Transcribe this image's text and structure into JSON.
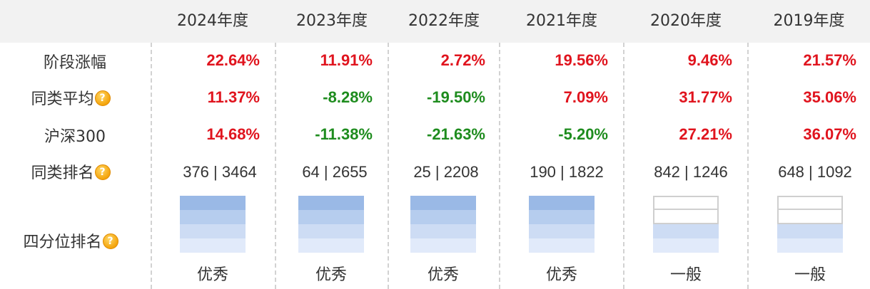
{
  "colors": {
    "positive": "#e0141e",
    "negative": "#1e8c1e",
    "quartile_filled": [
      "#9ab9e6",
      "#b6cdee",
      "#cddcf4",
      "#e1eafa"
    ],
    "quartile_empty_border": "#cfcfcf"
  },
  "years": [
    "2024年度",
    "2023年度",
    "2022年度",
    "2021年度",
    "2020年度",
    "2019年度"
  ],
  "rows": {
    "stage_gain": {
      "label": "阶段涨幅",
      "values": [
        "22.64%",
        "11.91%",
        "2.72%",
        "19.56%",
        "9.46%",
        "21.57%"
      ]
    },
    "peer_avg": {
      "label": "同类平均",
      "help_icon": "help-icon",
      "values": [
        "11.37%",
        "-8.28%",
        "-19.50%",
        "7.09%",
        "31.77%",
        "35.06%"
      ]
    },
    "csi300": {
      "label": "沪深300",
      "values": [
        "14.68%",
        "-11.38%",
        "-21.63%",
        "-5.20%",
        "27.21%",
        "36.07%"
      ]
    },
    "peer_rank": {
      "label": "同类排名",
      "help_icon": "help-icon",
      "values": [
        "376 | 3464",
        "64 | 2655",
        "25 | 2208",
        "190 | 1822",
        "842 | 1246",
        "648 | 1092"
      ]
    },
    "quartile": {
      "label": "四分位排名",
      "help_icon": "help-icon",
      "labels": [
        "优秀",
        "优秀",
        "优秀",
        "优秀",
        "一般",
        "一般"
      ],
      "filled_quarters": [
        4,
        4,
        4,
        4,
        2,
        2
      ]
    }
  }
}
